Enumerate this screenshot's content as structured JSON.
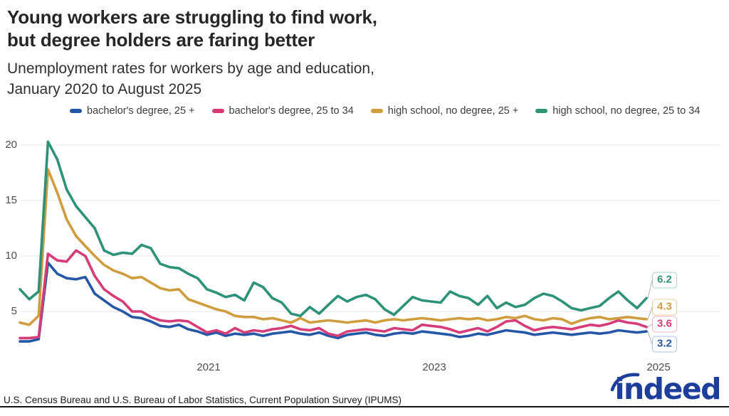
{
  "header": {
    "title_lines": [
      "Young workers are struggling to find work,",
      "but degree holders are faring better"
    ],
    "subtitle_lines": [
      "Unemployment rates for workers by age and education,",
      "January 2020 to August 2025"
    ]
  },
  "chart_data": {
    "type": "line",
    "title": "Young workers are struggling to find work, but degree holders are faring better",
    "subtitle": "Unemployment rates for workers by age and education, January 2020 to August 2025",
    "x_range": [
      "2020-01",
      "2025-08"
    ],
    "x_tick_labels": [
      "2021",
      "2023",
      "2025"
    ],
    "y_ticks": [
      5,
      10,
      15,
      20
    ],
    "ylim": [
      0,
      21
    ],
    "grid": "horizontal",
    "legend_position": "top",
    "unit": "percent",
    "series": [
      {
        "name": "bachelor's degree, 25 +",
        "color": "#2557a7",
        "box_border": "#a9c1e0",
        "end_label": "3.2",
        "values": [
          2.3,
          2.3,
          2.5,
          9.4,
          8.4,
          8.0,
          7.9,
          8.1,
          6.6,
          6.0,
          5.4,
          5.0,
          4.5,
          4.4,
          4.1,
          3.7,
          3.6,
          3.8,
          3.4,
          3.2,
          2.9,
          3.1,
          2.8,
          3.0,
          2.9,
          3.0,
          2.8,
          3.0,
          3.1,
          3.2,
          3.0,
          2.9,
          3.1,
          2.8,
          2.6,
          2.9,
          3.0,
          3.1,
          2.9,
          2.8,
          3.0,
          3.1,
          3.0,
          3.2,
          3.1,
          3.0,
          2.9,
          2.7,
          2.8,
          3.0,
          2.9,
          3.1,
          3.3,
          3.2,
          3.1,
          2.9,
          3.0,
          3.1,
          3.0,
          2.9,
          3.0,
          3.1,
          3.0,
          3.1,
          3.3,
          3.2,
          3.1,
          3.2
        ]
      },
      {
        "name": "bachelor's degree, 25 to 34",
        "color": "#d63c77",
        "box_border": "#efb0c8",
        "end_label": "3.6",
        "values": [
          2.6,
          2.6,
          2.7,
          10.2,
          9.6,
          9.5,
          10.5,
          10.0,
          8.2,
          7.0,
          6.4,
          5.9,
          5.0,
          5.0,
          4.5,
          4.2,
          4.1,
          4.2,
          4.1,
          3.6,
          3.1,
          3.3,
          3.0,
          3.5,
          3.1,
          3.3,
          3.2,
          3.4,
          3.5,
          3.7,
          3.4,
          3.3,
          3.5,
          3.0,
          2.8,
          3.2,
          3.3,
          3.4,
          3.3,
          3.2,
          3.5,
          3.4,
          3.3,
          3.8,
          3.7,
          3.6,
          3.4,
          3.1,
          3.3,
          3.5,
          3.2,
          3.6,
          4.1,
          4.2,
          3.7,
          3.3,
          3.5,
          3.6,
          3.5,
          3.4,
          3.6,
          3.8,
          3.7,
          3.9,
          4.2,
          4.0,
          3.9,
          3.6
        ]
      },
      {
        "name": "high school, no degree, 25 +",
        "color": "#cf9d3d",
        "box_border": "#e9cd97",
        "end_label": "4.3",
        "values": [
          4.0,
          3.8,
          4.6,
          17.8,
          15.7,
          13.3,
          11.8,
          10.9,
          10.0,
          9.2,
          8.7,
          8.4,
          8.0,
          8.1,
          7.6,
          7.1,
          6.9,
          7.0,
          6.1,
          5.8,
          5.5,
          5.2,
          5.0,
          4.6,
          4.5,
          4.5,
          4.3,
          4.4,
          4.2,
          4.0,
          4.4,
          4.0,
          4.1,
          4.2,
          4.1,
          4.0,
          4.1,
          4.2,
          4.0,
          4.2,
          4.3,
          4.2,
          4.3,
          4.4,
          4.3,
          4.2,
          4.3,
          4.4,
          4.3,
          4.4,
          4.2,
          4.3,
          4.5,
          4.4,
          4.6,
          4.3,
          4.2,
          4.4,
          4.3,
          3.9,
          4.2,
          4.4,
          4.5,
          4.3,
          4.4,
          4.5,
          4.4,
          4.3
        ]
      },
      {
        "name": "high school, no degree, 25 to 34",
        "color": "#2e9278",
        "box_border": "#a6d2c5",
        "end_label": "6.2",
        "values": [
          7.0,
          6.1,
          6.8,
          20.3,
          18.7,
          16.0,
          14.5,
          13.5,
          12.5,
          10.5,
          10.1,
          10.3,
          10.2,
          11.0,
          10.7,
          9.3,
          9.0,
          8.9,
          8.4,
          8.0,
          7.0,
          6.7,
          6.3,
          6.5,
          6.0,
          7.6,
          7.2,
          6.2,
          5.8,
          4.8,
          4.6,
          5.4,
          4.8,
          5.6,
          6.4,
          5.9,
          6.3,
          6.5,
          6.1,
          5.2,
          4.7,
          5.5,
          6.3,
          6.0,
          5.9,
          5.8,
          6.8,
          6.4,
          6.2,
          5.6,
          6.4,
          5.3,
          5.8,
          5.4,
          5.6,
          6.2,
          6.6,
          6.4,
          5.9,
          5.3,
          5.1,
          5.3,
          5.5,
          6.2,
          6.8,
          6.0,
          5.3,
          6.2
        ]
      }
    ]
  },
  "footer": {
    "source": "U.S. Census Bureau and U.S. Bureau of Labor Statistics, Current Population Survey (IPUMS)",
    "logo_text": "indeed"
  }
}
